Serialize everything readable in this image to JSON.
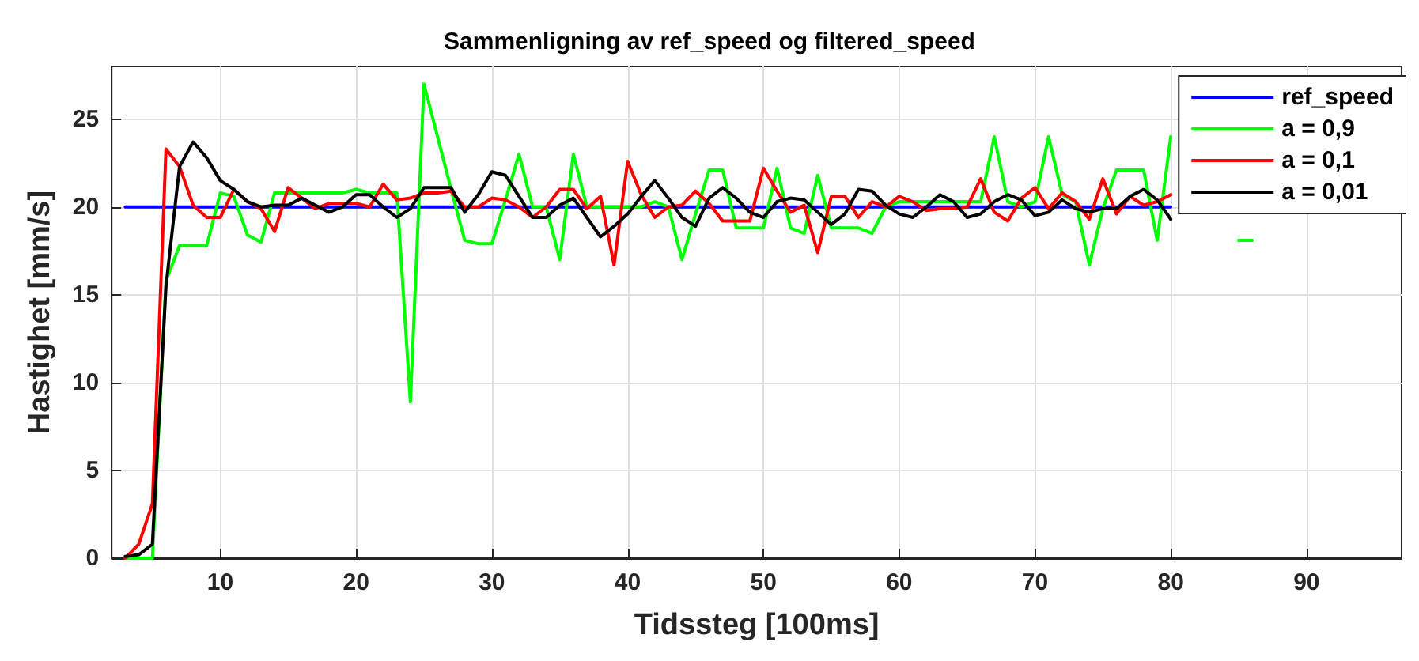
{
  "chart_data": {
    "type": "line",
    "title": "Sammenligning av ref_speed og filtered_speed",
    "xlabel": "Tidssteg [100ms]",
    "ylabel": "Hastighet [mm/s]",
    "x": [
      3,
      4,
      5,
      6,
      7,
      8,
      9,
      10,
      11,
      12,
      13,
      14,
      15,
      16,
      17,
      18,
      19,
      20,
      21,
      22,
      23,
      24,
      25,
      26,
      27,
      28,
      29,
      30,
      31,
      32,
      33,
      34,
      35,
      36,
      37,
      38,
      39,
      40,
      41,
      42,
      43,
      44,
      45,
      46,
      47,
      48,
      49,
      50,
      51,
      52,
      53,
      54,
      55,
      56,
      57,
      58,
      59,
      60,
      61,
      62,
      63,
      64,
      65,
      66,
      67,
      68,
      69,
      70,
      71,
      72,
      73,
      74,
      75,
      76,
      77,
      78,
      79,
      80,
      81,
      82,
      83,
      84,
      85,
      86
    ],
    "series": [
      {
        "name": "ref_speed",
        "color": "#0000ff",
        "x": [
          3,
          80
        ],
        "values": [
          20,
          20
        ]
      },
      {
        "name": "a = 0,9",
        "color": "#00ff00",
        "values": [
          0,
          0,
          0,
          15.8,
          17.8,
          17.8,
          17.8,
          20.8,
          20.6,
          18.4,
          18.0,
          20.8,
          20.8,
          20.8,
          20.8,
          20.8,
          20.8,
          21.0,
          20.8,
          20.8,
          20.8,
          8.9,
          27.0,
          24.0,
          21.0,
          18.1,
          17.9,
          17.9,
          20.4,
          23.0,
          20.0,
          20.0,
          17.0,
          23.0,
          20.0,
          20.0,
          20.0,
          20.0,
          20.0,
          20.3,
          20.0,
          17.0,
          19.6,
          22.1,
          22.1,
          18.8,
          18.8,
          18.8,
          22.2,
          18.8,
          18.5,
          21.8,
          18.8,
          18.8,
          18.8,
          18.5,
          20.0,
          20.3,
          20.3,
          20.3,
          20.3,
          20.3,
          20.3,
          20.3,
          24.0,
          20.3,
          20.0,
          20.3,
          24.0,
          20.7,
          20.3,
          16.7,
          19.9,
          22.1,
          22.1,
          22.1,
          18.1,
          24.0,
          null,
          null,
          null,
          null,
          18.1,
          18.1
        ]
      },
      {
        "name": "a = 0,1",
        "color": "#ff0000",
        "values": [
          0,
          0.8,
          3.1,
          23.3,
          22.3,
          20.1,
          19.4,
          19.4,
          21.0,
          20.3,
          19.9,
          18.6,
          21.1,
          20.5,
          19.9,
          20.2,
          20.2,
          20.2,
          20.0,
          21.3,
          20.4,
          20.5,
          20.8,
          20.8,
          20.9,
          20.0,
          20.0,
          20.5,
          20.4,
          20.0,
          19.4,
          20.0,
          21.0,
          21.0,
          19.9,
          20.6,
          16.7,
          22.6,
          20.7,
          19.4,
          20.0,
          20.1,
          20.9,
          20.2,
          19.2,
          19.2,
          19.2,
          22.2,
          20.9,
          19.7,
          20.1,
          17.4,
          20.6,
          20.6,
          19.4,
          20.3,
          20.0,
          20.6,
          20.3,
          19.8,
          19.9,
          19.9,
          20.0,
          21.6,
          19.7,
          19.2,
          20.5,
          21.1,
          19.9,
          20.8,
          20.3,
          19.3,
          21.6,
          19.6,
          20.6,
          20.1,
          20.3,
          20.7,
          null,
          null,
          null,
          null,
          null,
          null
        ]
      },
      {
        "name": "a = 0,01",
        "color": "#000000",
        "values": [
          0.1,
          0.2,
          0.8,
          15.5,
          22.3,
          23.7,
          22.8,
          21.5,
          21.0,
          20.3,
          20.0,
          20.1,
          20.1,
          20.5,
          20.1,
          19.7,
          20.0,
          20.7,
          20.7,
          20.0,
          19.4,
          19.9,
          21.1,
          21.1,
          21.1,
          19.7,
          20.7,
          22.0,
          21.8,
          20.6,
          19.4,
          19.4,
          20.1,
          20.5,
          19.4,
          18.3,
          18.9,
          19.6,
          20.6,
          21.5,
          20.5,
          19.4,
          18.9,
          20.5,
          21.1,
          20.5,
          19.7,
          19.4,
          20.3,
          20.5,
          20.4,
          19.7,
          19.0,
          19.6,
          21.0,
          20.9,
          20.1,
          19.6,
          19.4,
          20.0,
          20.7,
          20.3,
          19.4,
          19.6,
          20.3,
          20.7,
          20.4,
          19.5,
          19.7,
          20.4,
          19.9,
          19.7,
          19.9,
          19.9,
          20.6,
          21.0,
          20.4,
          19.3,
          null,
          null,
          null,
          null,
          null,
          null
        ]
      }
    ],
    "xlim": [
      2,
      97
    ],
    "xticks": [
      10,
      20,
      30,
      40,
      50,
      60,
      70,
      80,
      90
    ],
    "ylim": [
      0,
      28
    ],
    "yticks": [
      0,
      5,
      10,
      15,
      20,
      25
    ],
    "grid": true,
    "legend": "top right",
    "marker": "none",
    "line_style": "solid"
  }
}
